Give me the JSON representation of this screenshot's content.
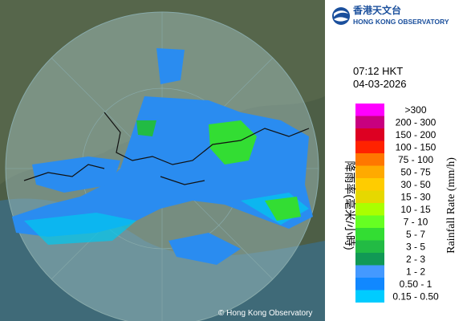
{
  "header": {
    "logo_chinese": "香港天文台",
    "logo_english": "HONG KONG OBSERVATORY"
  },
  "time": "07:12 HKT",
  "date": "04-03-2026",
  "legend": {
    "title_english": "Rainfall Rate (mm/h)",
    "title_chinese": "降雨率(毫米/小時)",
    "items": [
      {
        "label": ">300",
        "color": "#ff00ff"
      },
      {
        "label": "200 - 300",
        "color": "#c8007f"
      },
      {
        "label": "150 - 200",
        "color": "#dd0022"
      },
      {
        "label": "100 - 150",
        "color": "#ff2200"
      },
      {
        "label": "75 - 100",
        "color": "#ff7700"
      },
      {
        "label": "50 - 75",
        "color": "#ffaa00"
      },
      {
        "label": "30 - 50",
        "color": "#ffcc00"
      },
      {
        "label": "15 - 30",
        "color": "#e6d800"
      },
      {
        "label": "10 - 15",
        "color": "#aaff00"
      },
      {
        "label": "7 - 10",
        "color": "#66ff22"
      },
      {
        "label": "5 - 7",
        "color": "#33dd33"
      },
      {
        "label": "3 - 5",
        "color": "#22bb44"
      },
      {
        "label": "2 - 3",
        "color": "#119955"
      },
      {
        "label": "1 - 2",
        "color": "#4499ff"
      },
      {
        "label": "0.50 - 1",
        "color": "#1188ff"
      },
      {
        "label": "0.15 - 0.50",
        "color": "#00ccff"
      }
    ]
  },
  "copyright": "© Hong Kong Observatory"
}
